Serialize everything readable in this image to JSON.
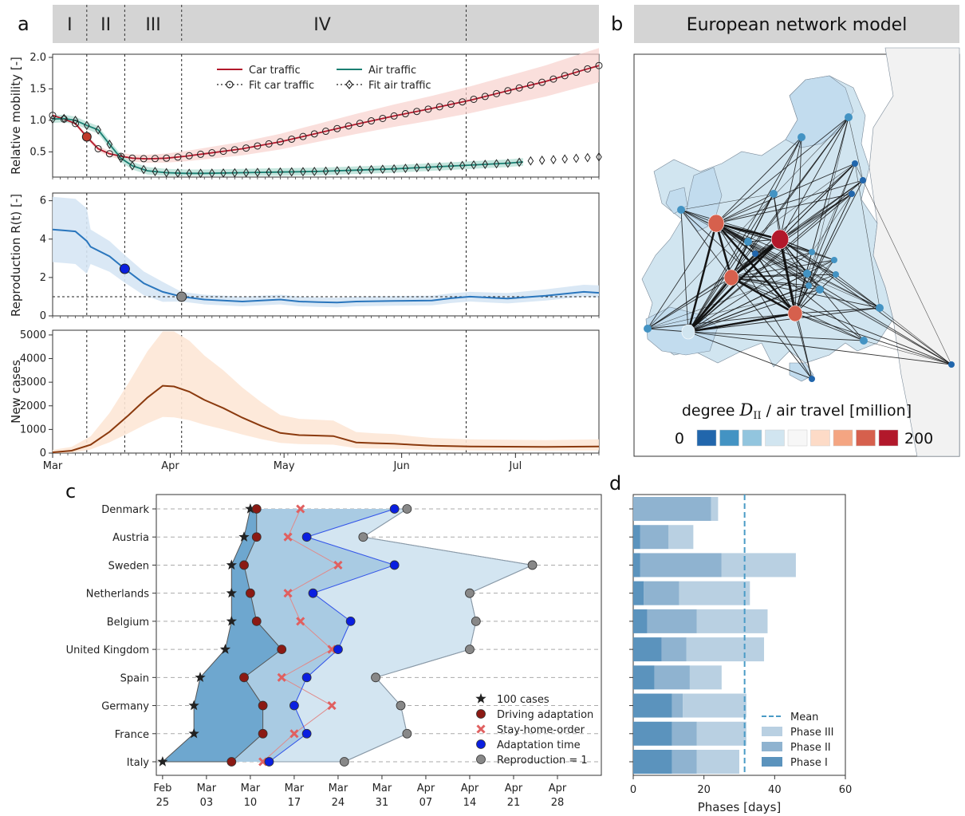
{
  "panels": {
    "a": "a",
    "b": "b",
    "c": "c",
    "d": "d"
  },
  "phases": [
    "I",
    "II",
    "III",
    "IV"
  ],
  "map": {
    "title": "European network model",
    "legend_title_pre": "degree ",
    "legend_title_math": "D",
    "legend_title_sub": "II",
    "legend_title_post": " / air travel [million]",
    "legend_min": "0",
    "legend_max": "200",
    "legend_colors": [
      "#2166ac",
      "#4393c3",
      "#92c5de",
      "#d1e5f0",
      "#f7f7f7",
      "#fddbc7",
      "#f4a582",
      "#d6604d",
      "#b2182b"
    ]
  },
  "chart_data": [
    {
      "id": "mobility",
      "type": "line",
      "ylabel": "Relative mobility [-]",
      "ylim": [
        0.1,
        2.05
      ],
      "yticks": [
        "0.5",
        "1.0",
        "1.5",
        "2.0"
      ],
      "x_unit": "days since 1 Mar 2020",
      "xlim": [
        0,
        144
      ],
      "phase_boundaries": [
        9,
        19,
        34,
        109
      ],
      "legend": [
        "Car traffic",
        "Fit car traffic",
        "Air traffic",
        "Fit air traffic"
      ],
      "colors": {
        "car": "#b2182b",
        "car_band": "#f8d2cd",
        "air": "#1a7f72",
        "air_band": "#b7e0d6"
      },
      "series": [
        {
          "name": "Car traffic",
          "x": [
            0,
            3,
            6,
            9,
            12,
            15,
            18,
            21,
            25,
            30,
            35,
            40,
            50,
            60,
            70,
            80,
            90,
            100,
            110,
            120,
            130,
            140,
            144
          ],
          "y": [
            1.08,
            1.02,
            0.95,
            0.74,
            0.55,
            0.47,
            0.43,
            0.4,
            0.39,
            0.4,
            0.43,
            0.47,
            0.55,
            0.66,
            0.8,
            0.94,
            1.07,
            1.19,
            1.32,
            1.47,
            1.62,
            1.8,
            1.87
          ]
        },
        {
          "name": "Air traffic",
          "x": [
            0,
            3,
            6,
            9,
            12,
            15,
            18,
            21,
            25,
            30,
            35,
            40,
            50,
            60,
            70,
            80,
            90,
            100,
            110,
            120,
            124
          ],
          "y": [
            1.02,
            1.03,
            1.0,
            0.92,
            0.85,
            0.62,
            0.4,
            0.28,
            0.2,
            0.17,
            0.16,
            0.16,
            0.17,
            0.18,
            0.19,
            0.21,
            0.23,
            0.26,
            0.29,
            0.32,
            0.34
          ]
        },
        {
          "name": "Fit air traffic",
          "x": [
            124,
            130,
            136,
            144
          ],
          "y": [
            0.35,
            0.37,
            0.39,
            0.42
          ]
        }
      ]
    },
    {
      "id": "reproduction",
      "type": "line",
      "ylabel": "Reproduction R(t) [-]",
      "ylim": [
        0,
        6.4
      ],
      "yticks": [
        "0",
        "2",
        "4",
        "6"
      ],
      "xlim": [
        0,
        144
      ],
      "reference_line": 1,
      "series": [
        {
          "name": "R(t)",
          "x": [
            0,
            3,
            6,
            9,
            10,
            15,
            19,
            24,
            29,
            34,
            40,
            50,
            55,
            60,
            65,
            70,
            75,
            80,
            90,
            100,
            105,
            110,
            115,
            120,
            130,
            140,
            144
          ],
          "y": [
            4.5,
            4.45,
            4.4,
            3.9,
            3.6,
            3.1,
            2.45,
            1.7,
            1.25,
            1.0,
            0.85,
            0.75,
            0.8,
            0.85,
            0.75,
            0.72,
            0.7,
            0.75,
            0.78,
            0.8,
            0.92,
            1.0,
            0.95,
            0.9,
            1.05,
            1.25,
            1.2
          ]
        }
      ]
    },
    {
      "id": "new_cases",
      "type": "line",
      "ylabel": "New cases",
      "ylim": [
        0,
        5200
      ],
      "yticks": [
        "0",
        "1000",
        "2000",
        "3000",
        "4000",
        "5000"
      ],
      "xlim": [
        0,
        144
      ],
      "xticks": [
        {
          "x": 0,
          "label": "Mar"
        },
        {
          "x": 31,
          "label": "Apr"
        },
        {
          "x": 61,
          "label": "May"
        },
        {
          "x": 92,
          "label": "Jun"
        },
        {
          "x": 122,
          "label": "Jul"
        }
      ],
      "series": [
        {
          "name": "New cases",
          "x": [
            0,
            5,
            10,
            15,
            20,
            25,
            29,
            32,
            36,
            40,
            45,
            50,
            55,
            60,
            65,
            70,
            74,
            80,
            85,
            90,
            95,
            100,
            110,
            120,
            130,
            144
          ],
          "y": [
            30,
            100,
            350,
            900,
            1600,
            2350,
            2850,
            2820,
            2600,
            2250,
            1900,
            1500,
            1150,
            850,
            760,
            740,
            720,
            450,
            420,
            400,
            350,
            310,
            280,
            270,
            260,
            280
          ]
        }
      ]
    },
    {
      "id": "country_timeline",
      "type": "scatter",
      "categories": [
        "Denmark",
        "Austria",
        "Sweden",
        "Netherlands",
        "Belgium",
        "United Kingdom",
        "Spain",
        "Germany",
        "France",
        "Italy"
      ],
      "x_unit": "days since 25 Feb 2020",
      "xlim": [
        -1,
        70
      ],
      "xticks": [
        {
          "x": 0,
          "l1": "Feb",
          "l2": "25"
        },
        {
          "x": 7,
          "l1": "Mar",
          "l2": "03"
        },
        {
          "x": 14,
          "l1": "Mar",
          "l2": "10"
        },
        {
          "x": 21,
          "l1": "Mar",
          "l2": "17"
        },
        {
          "x": 28,
          "l1": "Mar",
          "l2": "24"
        },
        {
          "x": 35,
          "l1": "Mar",
          "l2": "31"
        },
        {
          "x": 42,
          "l1": "Apr",
          "l2": "07"
        },
        {
          "x": 49,
          "l1": "Apr",
          "l2": "14"
        },
        {
          "x": 56,
          "l1": "Apr",
          "l2": "21"
        },
        {
          "x": 63,
          "l1": "Apr",
          "l2": "28"
        }
      ],
      "legend": [
        "100 cases",
        "Driving adaptation",
        "Stay-home-order",
        "Adaptation time",
        "Reproduction = 1"
      ],
      "series": [
        {
          "name": "100 cases",
          "values": [
            14,
            13,
            11,
            11,
            11,
            10,
            6,
            5,
            5,
            0
          ]
        },
        {
          "name": "Driving adaptation",
          "values": [
            15,
            15,
            13,
            14,
            15,
            19,
            13,
            16,
            16,
            11
          ]
        },
        {
          "name": "Stay-home-order",
          "values": [
            22,
            20,
            28,
            20,
            22,
            27,
            19,
            27,
            21,
            16
          ]
        },
        {
          "name": "Adaptation time",
          "values": [
            37,
            23,
            37,
            24,
            30,
            28,
            23,
            21,
            23,
            17
          ]
        },
        {
          "name": "Reproduction = 1",
          "values": [
            39,
            32,
            59,
            49,
            50,
            49,
            34,
            38,
            39,
            29
          ]
        }
      ]
    },
    {
      "id": "phase_durations",
      "type": "bar",
      "xlabel": "Phases [days]",
      "xlim": [
        0,
        60
      ],
      "xticks": [
        "0",
        "20",
        "40",
        "60"
      ],
      "mean": 31.5,
      "legend": [
        "Mean",
        "Phase III",
        "Phase II",
        "Phase I"
      ],
      "colors": {
        "phase1": "#5b93bd",
        "phase2": "#8fb3d0",
        "phase3": "#b9d0e2",
        "mean": "#4a9bc6"
      },
      "categories": [
        "Denmark",
        "Austria",
        "Sweden",
        "Netherlands",
        "Belgium",
        "United Kingdom",
        "Spain",
        "Germany",
        "France",
        "Italy"
      ],
      "series": [
        {
          "name": "Phase I",
          "values": [
            0,
            2,
            2,
            3,
            4,
            8,
            6,
            11,
            11,
            11
          ]
        },
        {
          "name": "Phase II",
          "values": [
            22,
            8,
            23,
            10,
            14,
            7,
            10,
            3,
            7,
            7
          ]
        },
        {
          "name": "Phase III",
          "values": [
            2,
            7,
            21,
            20,
            20,
            22,
            9,
            18,
            14,
            12
          ]
        }
      ]
    }
  ]
}
